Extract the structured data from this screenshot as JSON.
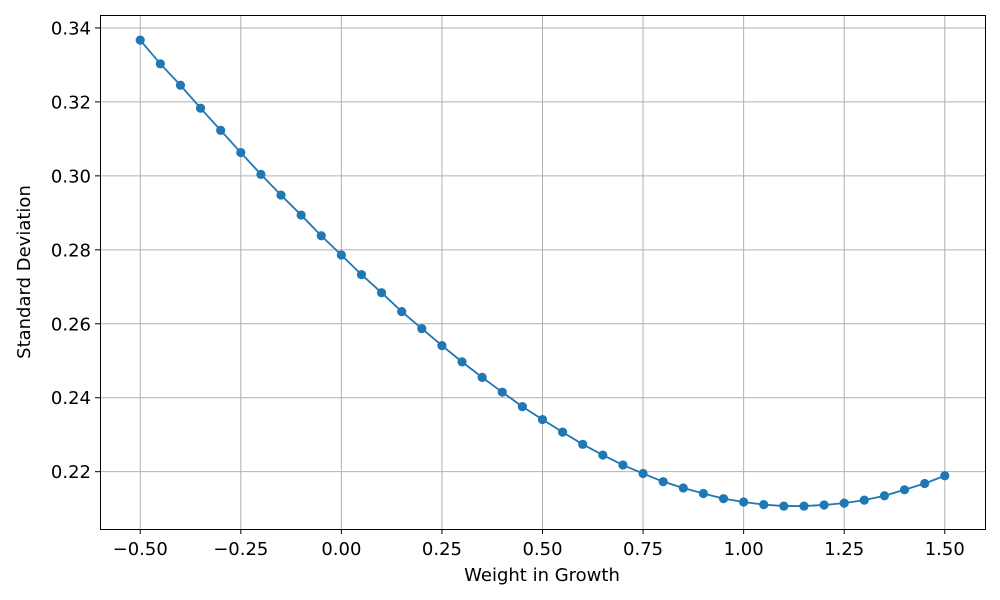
{
  "chart_data": {
    "type": "line",
    "title": "",
    "xlabel": "Weight in Growth",
    "ylabel": "Standard Deviation",
    "xlim": [
      -0.6,
      1.6
    ],
    "ylim": [
      0.2045,
      0.3435
    ],
    "grid": true,
    "marker": "circle",
    "color": "#1f77b4",
    "xticks": [
      -0.5,
      -0.25,
      0.0,
      0.25,
      0.5,
      0.75,
      1.0,
      1.25,
      1.5
    ],
    "xtick_labels": [
      "−0.50",
      "−0.25",
      "0.00",
      "0.25",
      "0.50",
      "0.75",
      "1.00",
      "1.25",
      "1.50"
    ],
    "yticks": [
      0.22,
      0.24,
      0.26,
      0.28,
      0.3,
      0.32,
      0.34
    ],
    "ytick_labels": [
      "0.22",
      "0.24",
      "0.26",
      "0.28",
      "0.30",
      "0.32",
      "0.34"
    ],
    "series": [
      {
        "x": [
          -0.5,
          -0.45,
          -0.4,
          -0.35,
          -0.3,
          -0.25,
          -0.2,
          -0.15,
          -0.1,
          -0.05,
          0.0,
          0.05,
          0.1,
          0.15,
          0.2,
          0.25,
          0.3,
          0.35,
          0.4,
          0.45,
          0.5,
          0.55,
          0.6,
          0.65,
          0.7,
          0.75,
          0.8,
          0.85,
          0.9,
          0.95,
          1.0,
          1.05,
          1.1,
          1.15,
          1.2,
          1.25,
          1.3,
          1.35,
          1.4,
          1.45,
          1.5
        ],
        "y": [
          0.3367,
          0.3303,
          0.3245,
          0.3183,
          0.3123,
          0.3063,
          0.3004,
          0.2948,
          0.2894,
          0.2838,
          0.2786,
          0.2733,
          0.2684,
          0.2633,
          0.2587,
          0.2541,
          0.2497,
          0.2455,
          0.2415,
          0.2376,
          0.2341,
          0.2307,
          0.2274,
          0.2245,
          0.2218,
          0.2195,
          0.2173,
          0.2156,
          0.2141,
          0.2127,
          0.2118,
          0.2111,
          0.2107,
          0.2107,
          0.211,
          0.2115,
          0.2123,
          0.2135,
          0.2151,
          0.2168,
          0.2189
        ]
      }
    ]
  }
}
